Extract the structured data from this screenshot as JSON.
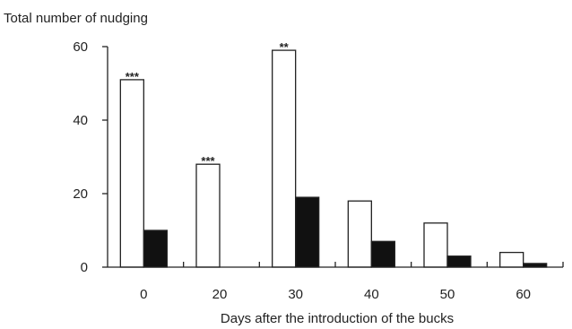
{
  "chart_data": {
    "type": "bar",
    "ylabel": "Total number of nudging",
    "xlabel": "Days after the introduction of the bucks",
    "categories": [
      "0",
      "20",
      "30",
      "40",
      "50",
      "60"
    ],
    "ylim": [
      0,
      60
    ],
    "yticks": [
      0,
      20,
      40,
      60
    ],
    "grid": false,
    "series": [
      {
        "values": [
          51,
          28,
          59,
          18,
          12,
          4
        ],
        "fill": "#ffffff"
      },
      {
        "values": [
          10,
          0,
          19,
          7,
          3,
          1
        ],
        "fill": "#111111"
      }
    ],
    "annotations": [
      {
        "category": "0",
        "series": 0,
        "text": "***"
      },
      {
        "category": "20",
        "series": 0,
        "text": "***"
      },
      {
        "category": "30",
        "series": 0,
        "text": "**"
      }
    ]
  }
}
